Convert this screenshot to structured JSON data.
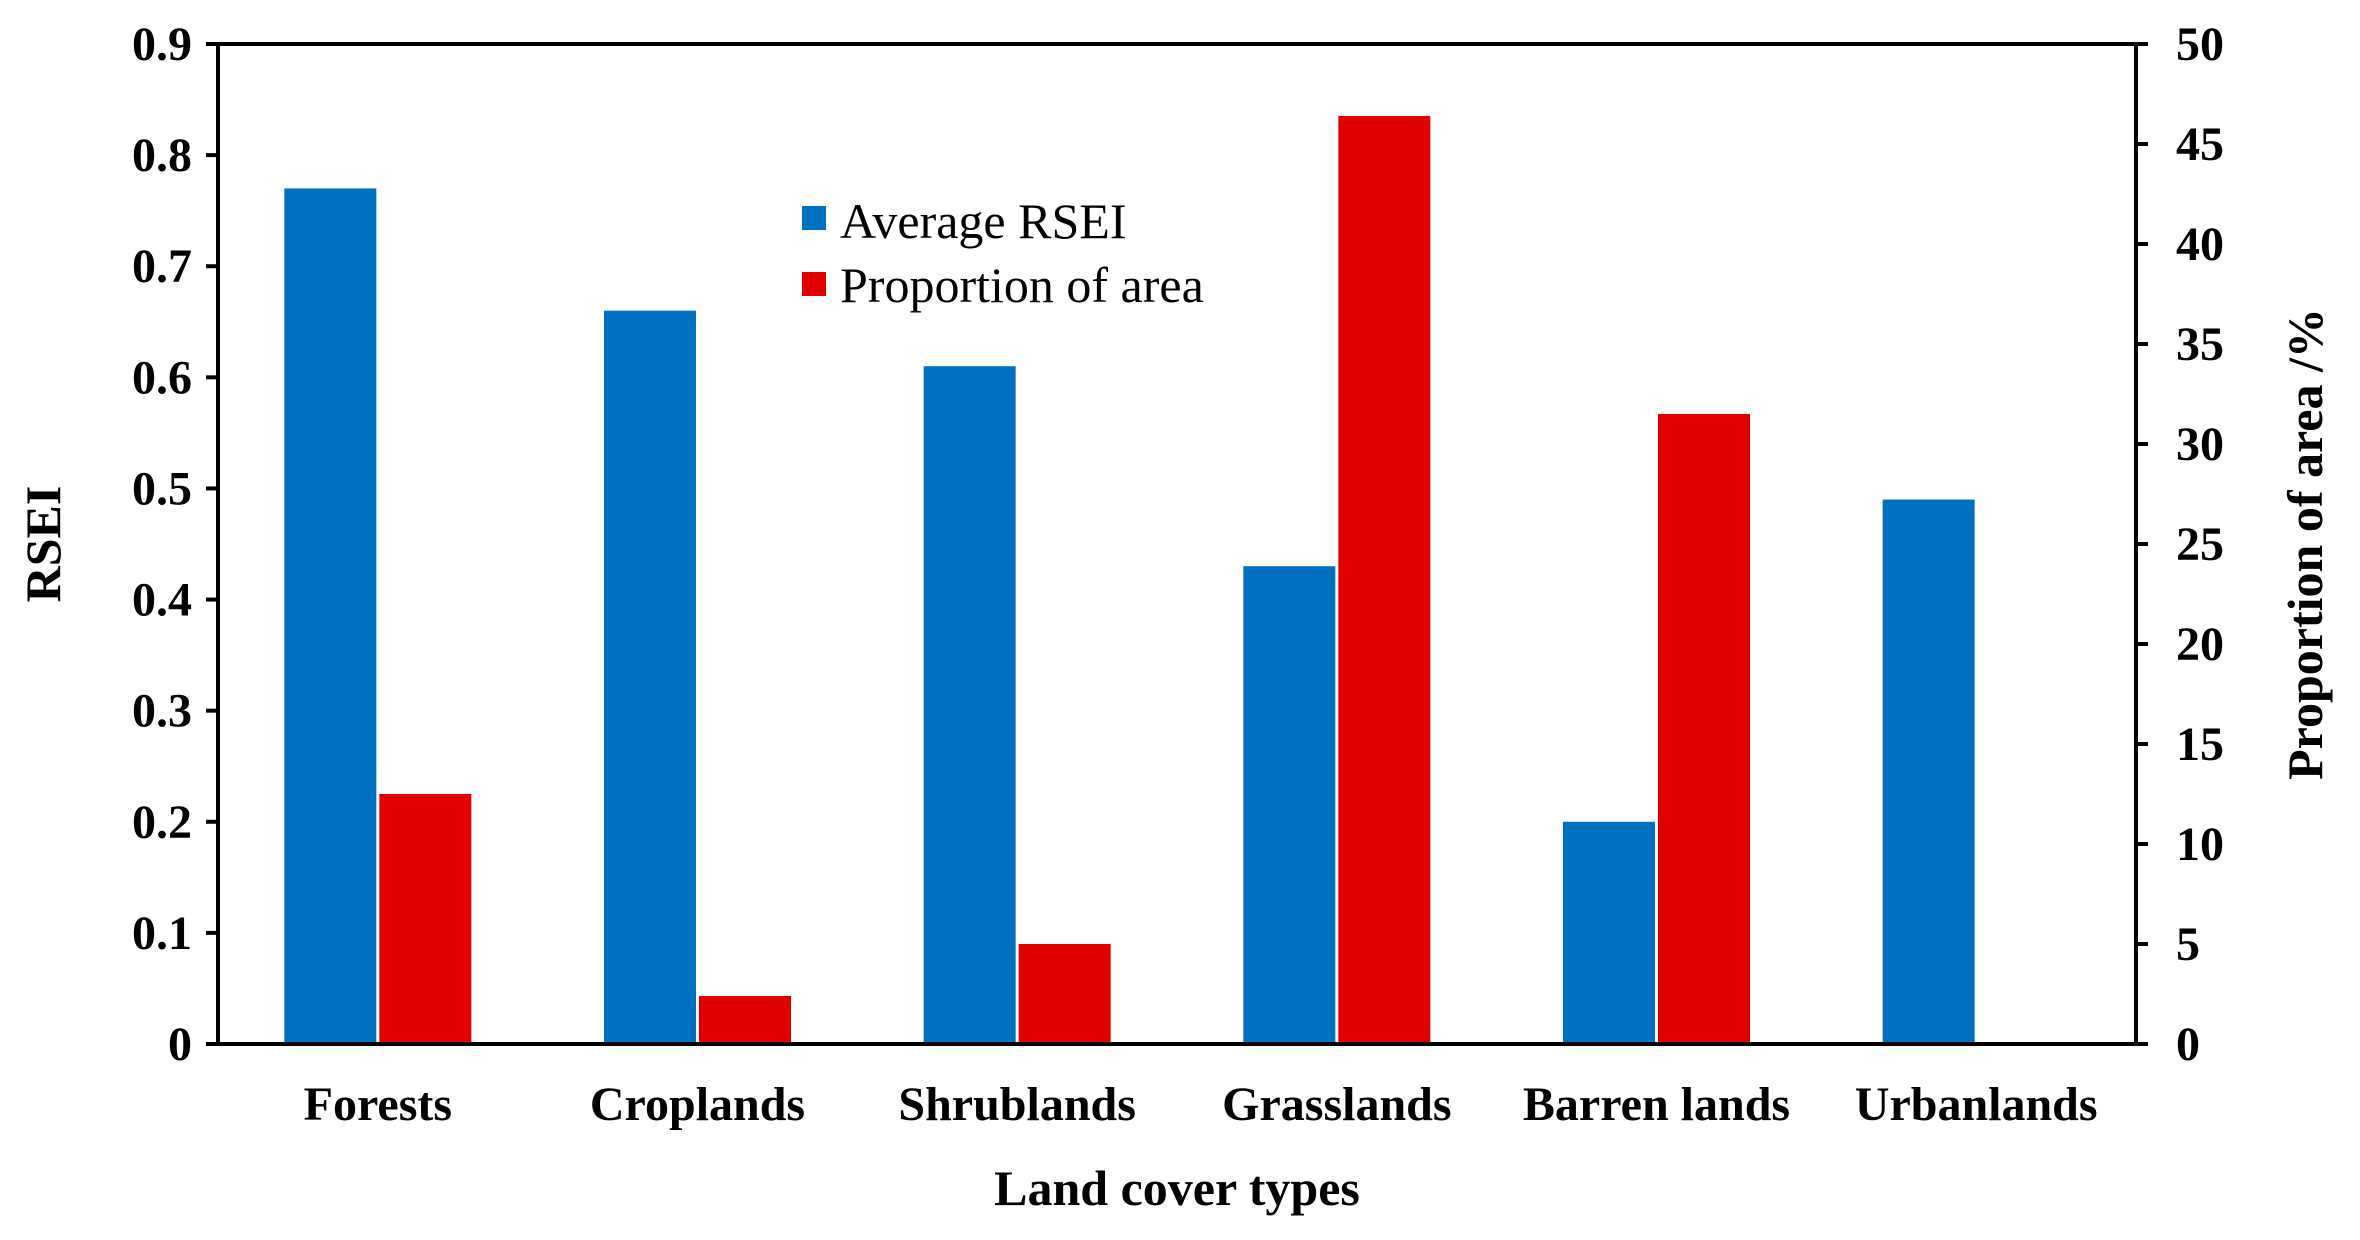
{
  "chart_data": {
    "type": "bar",
    "categories": [
      "Forests",
      "Croplands",
      "Shrublands",
      "Grasslands",
      "Barren lands",
      "Urbanlands"
    ],
    "series": [
      {
        "name": "Average RSEI",
        "axis": "left",
        "color": "#0070C0",
        "values": [
          0.77,
          0.66,
          0.61,
          0.43,
          0.2,
          0.49
        ]
      },
      {
        "name": "Proportion of area",
        "axis": "right",
        "color": "#E00000",
        "values": [
          12.5,
          2.4,
          5.0,
          46.4,
          31.5,
          0
        ]
      }
    ],
    "xlabel": "Land cover types",
    "ylabel": "RSEI",
    "y2label": "Proportion of area /%",
    "ylim": [
      0,
      0.9
    ],
    "y2lim": [
      0,
      50
    ],
    "yticks": [
      "0",
      "0.1",
      "0.2",
      "0.3",
      "0.4",
      "0.5",
      "0.6",
      "0.7",
      "0.8",
      "0.9"
    ],
    "y2ticks": [
      "0",
      "5",
      "10",
      "15",
      "20",
      "25",
      "30",
      "35",
      "40",
      "45",
      "50"
    ],
    "legend_position": "top-center",
    "grid": false
  }
}
